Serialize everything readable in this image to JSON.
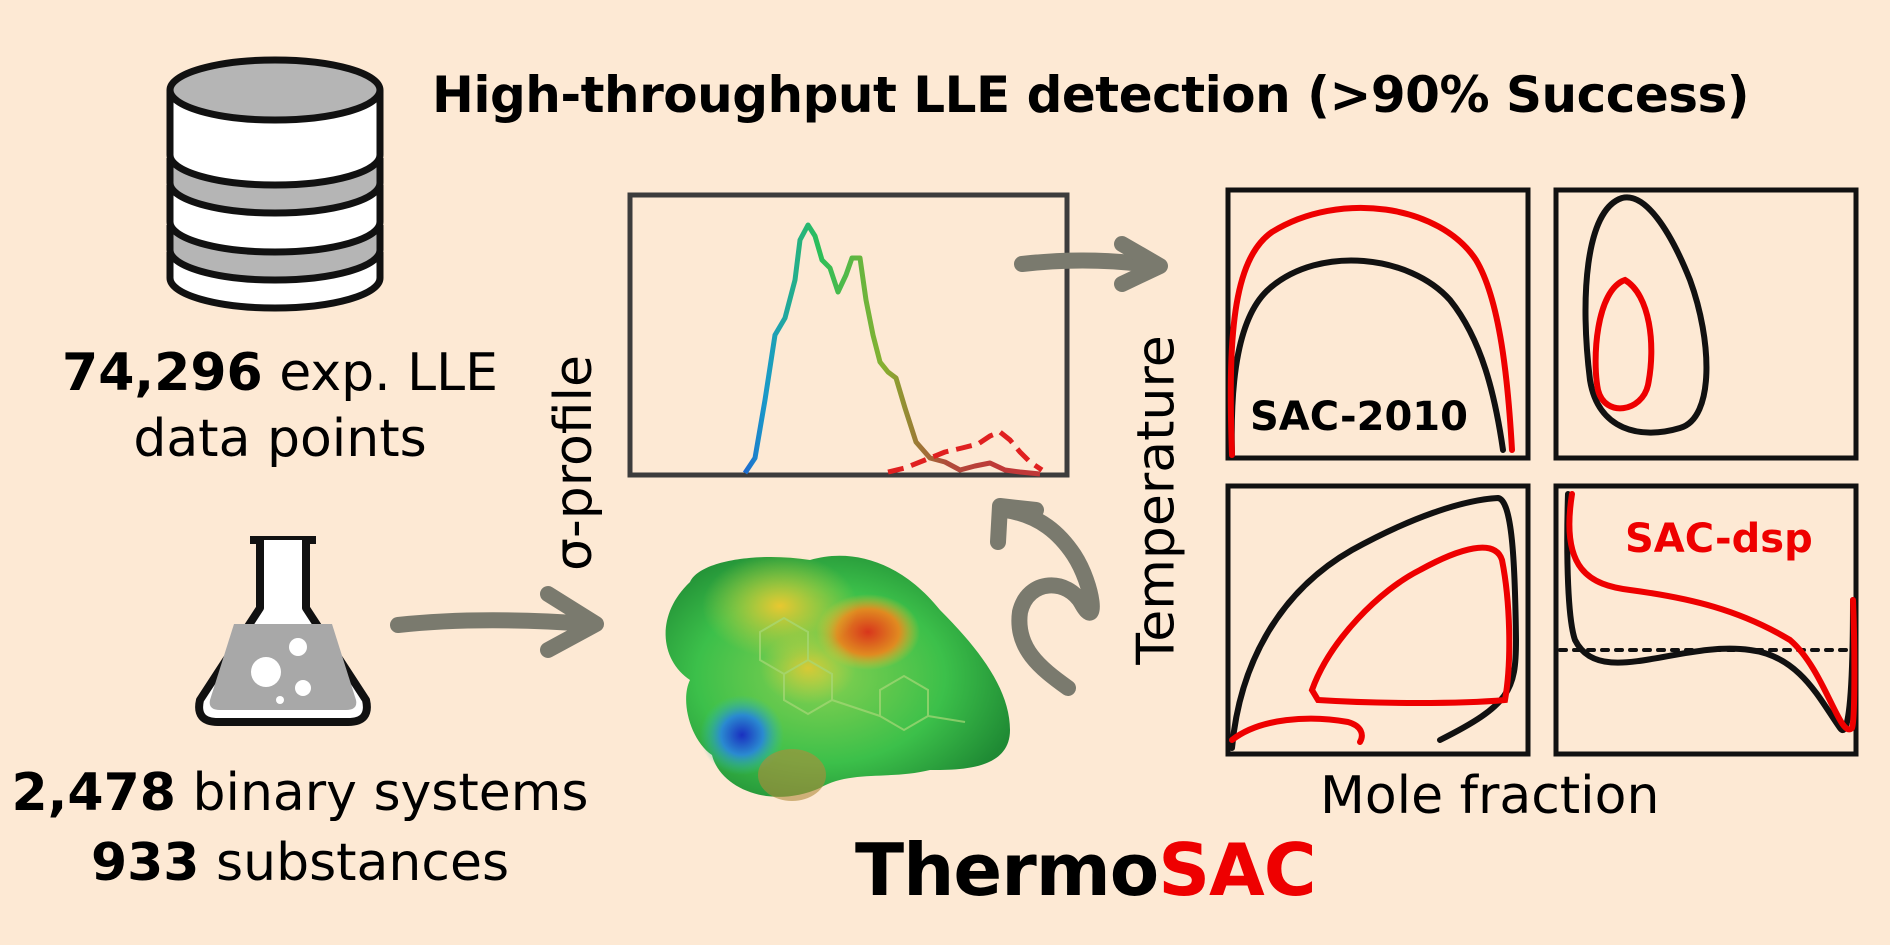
{
  "header": {
    "title": "High-throughput LLE detection (>90% Success)"
  },
  "left": {
    "stat1_number": "74,296",
    "stat1_rest": "exp. LLE",
    "stat1_line2": "data points",
    "stat2_number": "2,478",
    "stat2_rest": "binary systems",
    "stat3_number": "933",
    "stat3_rest": "substances"
  },
  "sigma_profile": {
    "ylabel": "σ-profile"
  },
  "phase_diagrams": {
    "ylabel": "Temperature",
    "xlabel": "Mole fraction",
    "label_sac2010": "SAC-2010",
    "label_sacdsp": "SAC-dsp"
  },
  "brand": {
    "part1": "Thermo",
    "part2": "SAC",
    "accent_color": "#ee0000"
  },
  "icons": [
    "database-icon",
    "flask-icon",
    "molecule-surface"
  ]
}
